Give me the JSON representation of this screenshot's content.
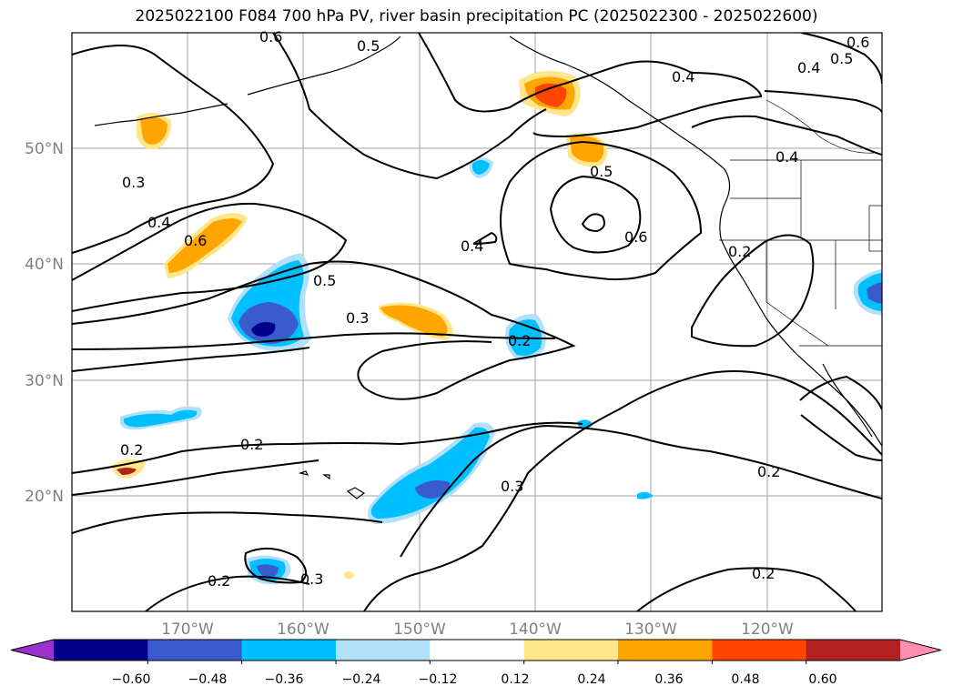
{
  "title": "2025022100 F084 700 hPa PV, river basin precipitation PC (2025022300 - 2025022600)",
  "map": {
    "lat_labels": [
      "50°N",
      "40°N",
      "30°N",
      "20°N"
    ],
    "lon_labels": [
      "170°W",
      "160°W",
      "150°W",
      "140°W",
      "130°W",
      "120°W"
    ],
    "contour_labels": [
      "0.6",
      "0.5",
      "0.5",
      "0.4",
      "0.6",
      "0.3",
      "0.4",
      "0.5",
      "0.4",
      "0.6",
      "0.4",
      "0.4",
      "0.6",
      "0.2",
      "0.5",
      "0.3",
      "0.2",
      "0.2",
      "0.2",
      "0.2",
      "0.3",
      "0.2",
      "0.3",
      "0.2"
    ],
    "grid_color": "#a0a0a0",
    "contour_color": "#000000"
  },
  "colorbar": {
    "ticks": [
      "−0.60",
      "−0.48",
      "−0.36",
      "−0.24",
      "−0.12",
      "0.12",
      "0.24",
      "0.36",
      "0.48",
      "0.60"
    ],
    "colors": [
      "#9932cc",
      "#00008b",
      "#3a5bcd",
      "#00bfff",
      "#b0e0fa",
      "#ffffff",
      "#ffe68a",
      "#ffa500",
      "#ff4500",
      "#b22222",
      "#ff8fb0"
    ]
  }
}
